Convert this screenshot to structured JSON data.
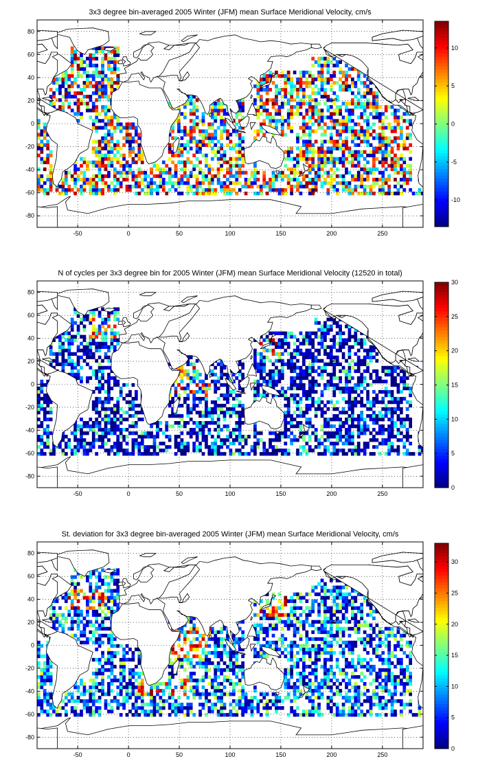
{
  "figure": {
    "colormap": "jet",
    "land_outline_color": "#000000",
    "background": "#ffffff"
  },
  "chart_data": [
    {
      "type": "heatmap",
      "title": "3x3 degree bin-averaged 2005 Winter (JFM) mean Surface Meridional Velocity, cm/s",
      "xlim": [
        -90,
        290
      ],
      "ylim": [
        -90,
        90
      ],
      "xticks": [
        -50,
        0,
        50,
        100,
        150,
        200,
        250
      ],
      "yticks": [
        -80,
        -60,
        -40,
        -20,
        0,
        20,
        40,
        60,
        80
      ],
      "grid": "dotted",
      "bin_size_deg": 3,
      "colorbar": {
        "cmin": -13.5,
        "cmax": 13.5,
        "ticks": [
          -10,
          -5,
          0,
          5,
          10
        ]
      },
      "value_range_estimate": [
        -13,
        13
      ]
    },
    {
      "type": "heatmap",
      "title": "N of cycles per 3x3 degree bin for 2005 Winter (JFM) mean Surface Meridional Velocity (12520 in total)",
      "xlim": [
        -90,
        290
      ],
      "ylim": [
        -90,
        90
      ],
      "xticks": [
        -50,
        0,
        50,
        100,
        150,
        200,
        250
      ],
      "yticks": [
        -80,
        -60,
        -40,
        -20,
        0,
        20,
        40,
        60,
        80
      ],
      "grid": "dotted",
      "bin_size_deg": 3,
      "colorbar": {
        "cmin": 0,
        "cmax": 30,
        "ticks": [
          0,
          5,
          10,
          15,
          20,
          25,
          30
        ]
      },
      "value_range_estimate": [
        0,
        30
      ]
    },
    {
      "type": "heatmap",
      "title": "St. deviation for 3x3 degree bin-averaged 2005 Winter (JFM) mean Surface Meridional Velocity, cm/s",
      "xlim": [
        -90,
        290
      ],
      "ylim": [
        -90,
        90
      ],
      "xticks": [
        -50,
        0,
        50,
        100,
        150,
        200,
        250
      ],
      "yticks": [
        -80,
        -60,
        -40,
        -20,
        0,
        20,
        40,
        60,
        80
      ],
      "grid": "dotted",
      "bin_size_deg": 3,
      "colorbar": {
        "cmin": 0,
        "cmax": 33,
        "ticks": [
          0,
          5,
          10,
          15,
          20,
          25,
          30
        ]
      },
      "value_range_estimate": [
        0,
        33
      ]
    }
  ]
}
